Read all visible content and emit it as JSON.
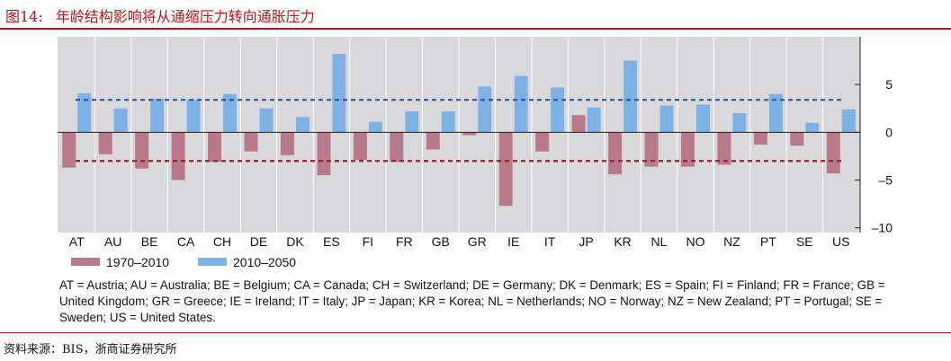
{
  "figure": {
    "label": "图14:",
    "title": "年龄结构影响将从通缩压力转向通胀压力"
  },
  "chart_data": {
    "type": "bar",
    "categories": [
      "AT",
      "AU",
      "BE",
      "CA",
      "CH",
      "DE",
      "DK",
      "ES",
      "FI",
      "FR",
      "GB",
      "GR",
      "IE",
      "IT",
      "JP",
      "KR",
      "NL",
      "NO",
      "NZ",
      "PT",
      "SE",
      "US"
    ],
    "series": [
      {
        "name": "1970–2010",
        "color": "#b87a8b",
        "values": [
          -3.7,
          -2.3,
          -3.8,
          -5.0,
          -3.1,
          -2.0,
          -2.4,
          -4.5,
          -2.9,
          -3.1,
          -1.8,
          -0.3,
          -7.7,
          -2.0,
          1.8,
          -4.4,
          -3.6,
          -3.6,
          -3.4,
          -1.3,
          -1.4,
          -4.3
        ]
      },
      {
        "name": "2010–2050",
        "color": "#7eb1e4",
        "values": [
          4.1,
          2.5,
          3.5,
          3.4,
          4.0,
          2.5,
          1.6,
          8.2,
          1.1,
          2.2,
          2.2,
          4.8,
          5.9,
          4.7,
          2.6,
          7.5,
          2.8,
          2.9,
          2.0,
          4.0,
          1.0,
          2.4
        ]
      }
    ],
    "reference_lines": [
      {
        "series": "2010–2050",
        "value": 3.4,
        "color": "#2f55b3"
      },
      {
        "series": "1970–2010",
        "value": -3.0,
        "color": "#a11f2a"
      }
    ],
    "ylim": [
      -10.5,
      10
    ],
    "yticks": [
      5,
      0,
      -5,
      -10
    ],
    "ytick_labels": [
      "5",
      "0",
      "–5",
      "–10"
    ],
    "grid": false,
    "legend_position": "bottom-left"
  },
  "notes": "AT = Austria;  AU = Australia;  BE = Belgium;  CA = Canada;  CH = Switzerland;  DE = Germany;  DK = Denmark;  ES = Spain;  FI = Finland; FR = France; GB = United Kingdom; GR = Greece; IE = Ireland; IT = Italy; JP = Japan; KR = Korea; NL = Netherlands; NO = Norway; NZ = New Zealand; PT = Portugal; SE = Sweden; US = United States.",
  "source": "资料来源：BIS，浙商证券研究所"
}
